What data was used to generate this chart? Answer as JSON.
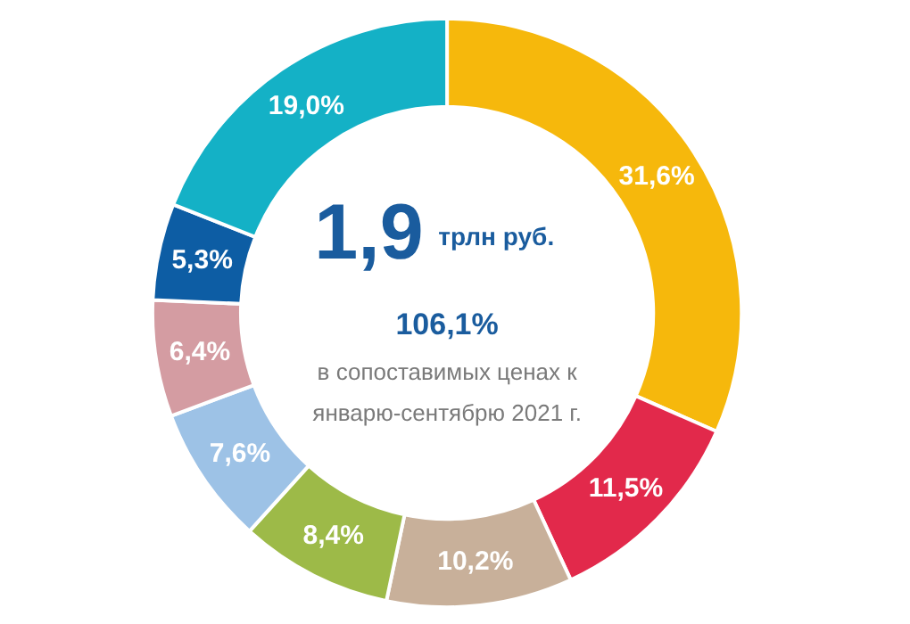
{
  "chart_data": {
    "type": "donut",
    "categories": [
      null,
      null,
      null,
      null,
      null,
      null,
      null,
      null
    ],
    "values": [
      31.6,
      11.5,
      10.2,
      8.4,
      7.6,
      6.4,
      5.3,
      19.0
    ],
    "colors": [
      "#f6b80c",
      "#e2294b",
      "#c8b09a",
      "#9dba48",
      "#9dc2e6",
      "#d49ca2",
      "#0d5da4",
      "#14b1c6"
    ],
    "value_labels": [
      "31,6%",
      "11,5%",
      "10,2%",
      "8,4%",
      "7,6%",
      "6,4%",
      "5,3%",
      "19,0%"
    ],
    "annotations": [
      "1,9",
      "трлн руб.",
      "106,1%",
      "в сопоставимых ценах к",
      "январю-сентябрю 2021 г."
    ]
  }
}
